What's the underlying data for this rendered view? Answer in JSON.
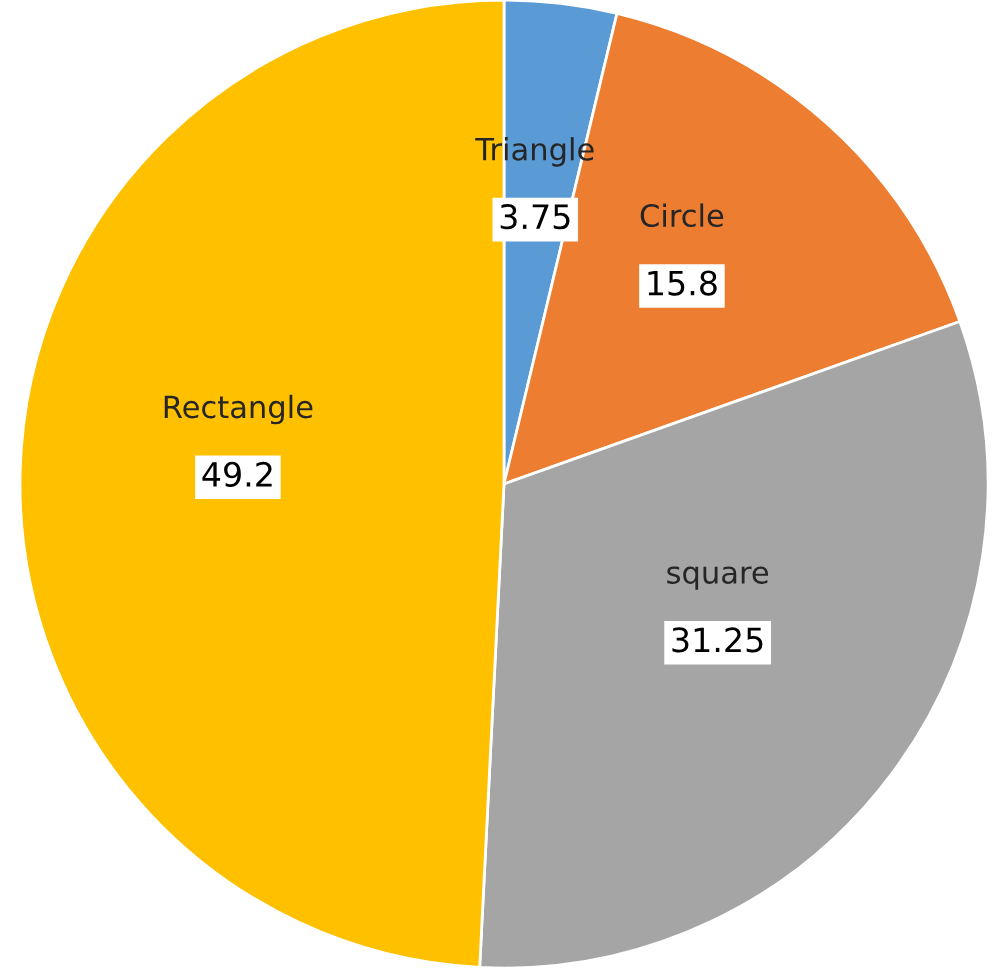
{
  "chart_data": {
    "type": "pie",
    "categories": [
      "Triangle",
      "Circle",
      "square",
      "Rectangle"
    ],
    "values": [
      3.75,
      15.8,
      31.25,
      49.2
    ],
    "colors": [
      "#5b9bd5",
      "#ed7d31",
      "#a5a5a5",
      "#ffc000"
    ],
    "data_labels": true
  }
}
